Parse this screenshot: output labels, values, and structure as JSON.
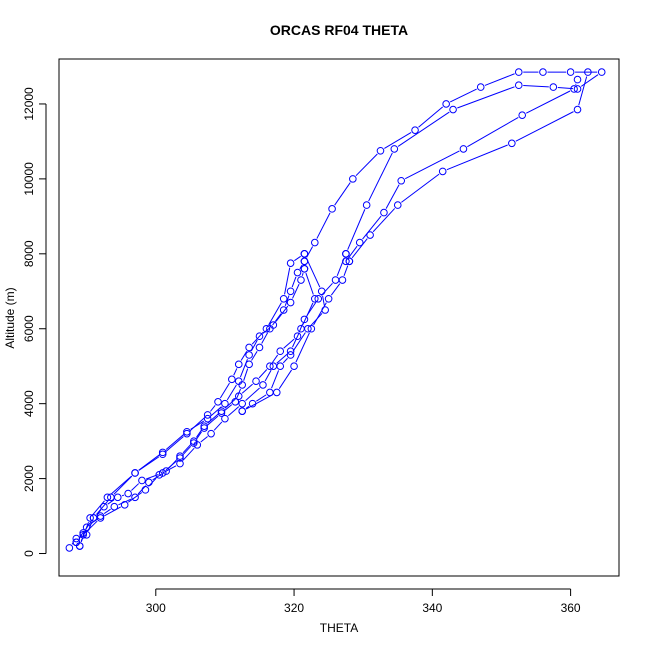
{
  "chart_data": {
    "type": "line",
    "title": "ORCAS RF04 THETA",
    "xlabel": "THETA",
    "ylabel": "Altitude (m)",
    "xlim": [
      286,
      367
    ],
    "ylim": [
      -600,
      13200
    ],
    "x_ticks": [
      300,
      320,
      340,
      360
    ],
    "y_ticks": [
      0,
      2000,
      4000,
      6000,
      8000,
      10000,
      12000
    ],
    "grid": false,
    "legend": "none",
    "color": "#0000ff",
    "series": [
      {
        "points": [
          [
            287.5,
            150
          ],
          [
            288.5,
            400
          ],
          [
            290.0,
            500
          ],
          [
            291.0,
            950
          ],
          [
            292.5,
            1250
          ],
          [
            294.5,
            1500
          ],
          [
            296.0,
            1600
          ],
          [
            298.0,
            1950
          ],
          [
            301.0,
            2150
          ],
          [
            303.5,
            2550
          ],
          [
            305.5,
            2950
          ],
          [
            307.0,
            3350
          ],
          [
            309.5,
            3750
          ],
          [
            311.5,
            4050
          ],
          [
            312.5,
            4500
          ],
          [
            313.5,
            5050
          ],
          [
            315.0,
            5500
          ],
          [
            316.5,
            6000
          ],
          [
            318.5,
            6500
          ],
          [
            319.5,
            7000
          ],
          [
            320.5,
            7500
          ],
          [
            321.5,
            7800
          ]
        ]
      },
      {
        "points": [
          [
            321.5,
            7800
          ],
          [
            323.0,
            8300
          ],
          [
            325.5,
            9200
          ],
          [
            328.5,
            10000
          ],
          [
            332.5,
            10750
          ],
          [
            337.5,
            11300
          ],
          [
            342.0,
            12000
          ],
          [
            347.0,
            12450
          ],
          [
            352.5,
            12850
          ],
          [
            356.0,
            12850
          ],
          [
            360.0,
            12850
          ],
          [
            364.5,
            12850
          ],
          [
            361.0,
            12400
          ],
          [
            357.5,
            12450
          ],
          [
            352.5,
            12500
          ],
          [
            343.0,
            11850
          ],
          [
            334.5,
            10800
          ],
          [
            330.5,
            9300
          ],
          [
            327.5,
            8000
          ]
        ]
      },
      {
        "points": [
          [
            327.5,
            8000
          ],
          [
            326.0,
            7300
          ],
          [
            323.5,
            6800
          ],
          [
            321.5,
            6250
          ],
          [
            320.5,
            5800
          ],
          [
            318.0,
            5400
          ],
          [
            316.5,
            5000
          ],
          [
            314.5,
            4600
          ],
          [
            312.0,
            4200
          ],
          [
            309.5,
            3800
          ],
          [
            307.0,
            3400
          ],
          [
            305.5,
            3000
          ],
          [
            303.5,
            2600
          ],
          [
            301.5,
            2200
          ],
          [
            299.0,
            1900
          ],
          [
            297.0,
            1500
          ],
          [
            294.0,
            1250
          ],
          [
            292.0,
            1000
          ],
          [
            290.0,
            700
          ],
          [
            288.5,
            300
          ]
        ]
      },
      {
        "points": [
          [
            288.5,
            300
          ],
          [
            289.5,
            550
          ],
          [
            291.0,
            950
          ],
          [
            293.5,
            1500
          ],
          [
            297.0,
            2150
          ],
          [
            301.0,
            2700
          ],
          [
            304.5,
            3250
          ],
          [
            307.5,
            3600
          ],
          [
            310.0,
            4000
          ],
          [
            312.0,
            4600
          ],
          [
            313.5,
            5300
          ],
          [
            315.0,
            5800
          ],
          [
            317.0,
            6100
          ],
          [
            319.5,
            6700
          ],
          [
            321.0,
            7300
          ],
          [
            321.5,
            7600
          ]
        ]
      },
      {
        "points": [
          [
            321.5,
            7600
          ],
          [
            323.0,
            6800
          ],
          [
            321.0,
            6000
          ],
          [
            319.5,
            5400
          ],
          [
            317.0,
            5000
          ],
          [
            315.5,
            4500
          ],
          [
            312.5,
            4000
          ],
          [
            310.0,
            3600
          ],
          [
            308.0,
            3200
          ],
          [
            306.0,
            2900
          ],
          [
            303.5,
            2400
          ],
          [
            300.5,
            2100
          ],
          [
            298.5,
            1700
          ],
          [
            295.5,
            1300
          ],
          [
            292.0,
            950
          ],
          [
            289.5,
            500
          ],
          [
            289.0,
            200
          ]
        ]
      },
      {
        "points": [
          [
            289.0,
            200
          ],
          [
            290.5,
            950
          ],
          [
            293.0,
            1500
          ],
          [
            297.0,
            2150
          ],
          [
            301.0,
            2650
          ],
          [
            304.5,
            3200
          ],
          [
            307.5,
            3700
          ],
          [
            309.0,
            4050
          ],
          [
            311.0,
            4650
          ],
          [
            312.0,
            5050
          ],
          [
            313.5,
            5500
          ],
          [
            316.0,
            6000
          ],
          [
            318.5,
            6800
          ],
          [
            319.5,
            7750
          ],
          [
            321.5,
            8000
          ]
        ]
      },
      {
        "points": [
          [
            321.5,
            8000
          ],
          [
            324.0,
            7000
          ],
          [
            324.5,
            6500
          ],
          [
            322.0,
            6000
          ],
          [
            319.5,
            5300
          ],
          [
            318.0,
            5000
          ],
          [
            316.5,
            4300
          ],
          [
            314.0,
            4000
          ],
          [
            312.5,
            3800
          ]
        ]
      },
      {
        "points": [
          [
            312.5,
            3800
          ],
          [
            317.5,
            4300
          ],
          [
            320.0,
            5000
          ],
          [
            322.5,
            6000
          ],
          [
            325.0,
            6800
          ],
          [
            327.0,
            7300
          ],
          [
            328.0,
            7800
          ]
        ]
      },
      {
        "points": [
          [
            328.0,
            7800
          ],
          [
            331.0,
            8500
          ],
          [
            335.0,
            9300
          ],
          [
            341.5,
            10200
          ],
          [
            351.5,
            10950
          ],
          [
            361.0,
            11850
          ],
          [
            362.5,
            12850
          ]
        ]
      },
      {
        "points": [
          [
            327.5,
            7800
          ],
          [
            329.5,
            8300
          ],
          [
            333.0,
            9100
          ],
          [
            335.5,
            9950
          ],
          [
            344.5,
            10800
          ],
          [
            353.0,
            11700
          ],
          [
            360.5,
            12400
          ],
          [
            361.0,
            12650
          ]
        ]
      }
    ]
  }
}
